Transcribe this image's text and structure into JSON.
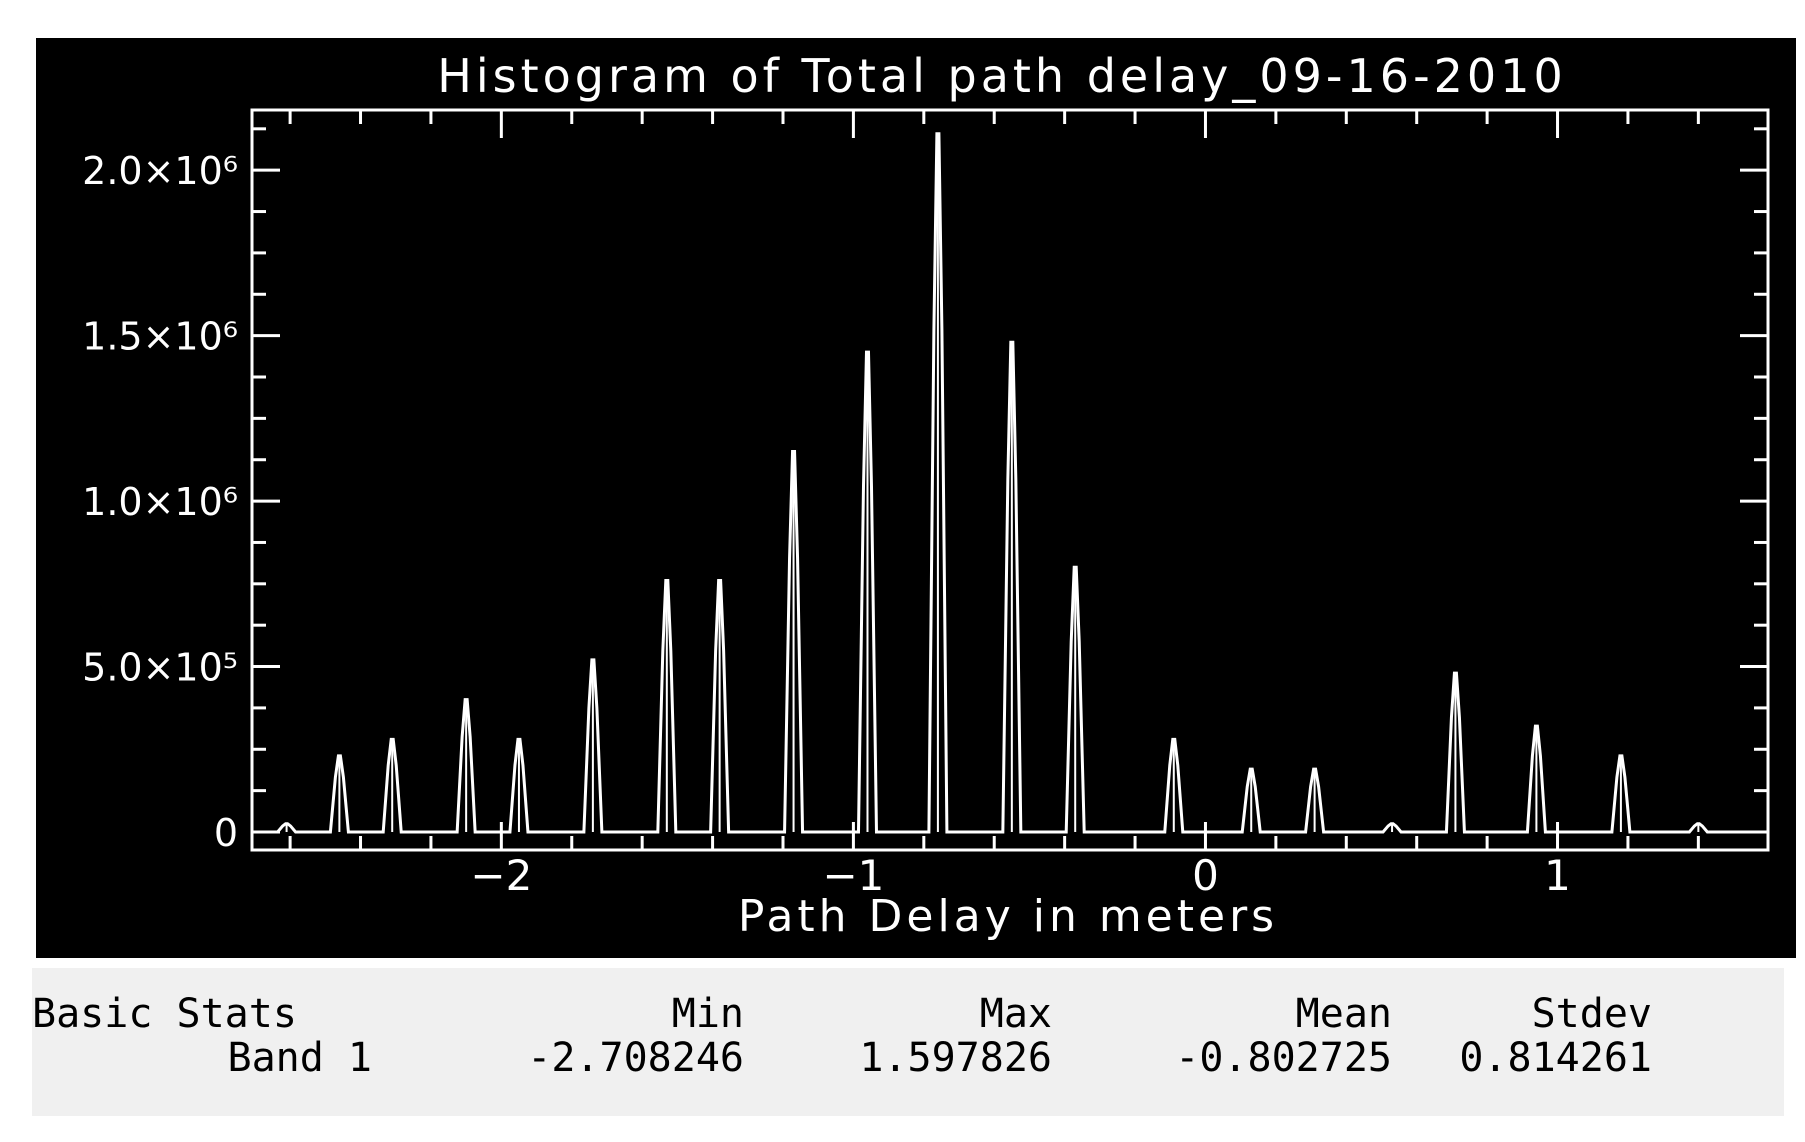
{
  "chart_data": {
    "type": "bar",
    "title": "Histogram of Total path delay_09-16-2010",
    "xlabel": "Path Delay in meters",
    "ylabel": "",
    "xlim": [
      -2.708246,
      1.597826
    ],
    "ylim": [
      0,
      2200000
    ],
    "grid": false,
    "x_ticks": [
      {
        "value": -2,
        "label": "−2"
      },
      {
        "value": -1,
        "label": "−1"
      },
      {
        "value": 0,
        "label": "0"
      },
      {
        "value": 1,
        "label": "1"
      }
    ],
    "y_ticks": [
      {
        "value": 0,
        "label": "0"
      },
      {
        "value": 500000,
        "label": "5.0×10⁵"
      },
      {
        "value": 1000000,
        "label": "1.0×10⁶"
      },
      {
        "value": 1500000,
        "label": "1.5×10⁶"
      },
      {
        "value": 2000000,
        "label": "2.0×10⁶"
      }
    ],
    "series": [
      {
        "values": [
          {
            "x": -2.61,
            "y": 25000
          },
          {
            "x": -2.46,
            "y": 230000
          },
          {
            "x": -2.31,
            "y": 280000
          },
          {
            "x": -2.1,
            "y": 400000
          },
          {
            "x": -1.95,
            "y": 280000
          },
          {
            "x": -1.74,
            "y": 520000
          },
          {
            "x": -1.53,
            "y": 760000
          },
          {
            "x": -1.38,
            "y": 760000
          },
          {
            "x": -1.17,
            "y": 1150000
          },
          {
            "x": -0.96,
            "y": 1450000
          },
          {
            "x": -0.76,
            "y": 2110000
          },
          {
            "x": -0.55,
            "y": 1480000
          },
          {
            "x": -0.37,
            "y": 800000
          },
          {
            "x": -0.09,
            "y": 280000
          },
          {
            "x": 0.13,
            "y": 190000
          },
          {
            "x": 0.31,
            "y": 190000
          },
          {
            "x": 0.53,
            "y": 25000
          },
          {
            "x": 0.71,
            "y": 480000
          },
          {
            "x": 0.94,
            "y": 320000
          },
          {
            "x": 1.18,
            "y": 230000
          },
          {
            "x": 1.4,
            "y": 25000
          }
        ]
      }
    ],
    "colors": {
      "background": "#000000",
      "foreground": "#ffffff"
    }
  },
  "stats": {
    "header": {
      "label": "Basic Stats",
      "min": "Min",
      "max": "Max",
      "mean": "Mean",
      "stdev": "Stdev"
    },
    "rows": [
      {
        "label": "Band 1",
        "min": "-2.708246",
        "max": "1.597826",
        "mean": "-0.802725",
        "stdev": "0.814261"
      }
    ]
  }
}
